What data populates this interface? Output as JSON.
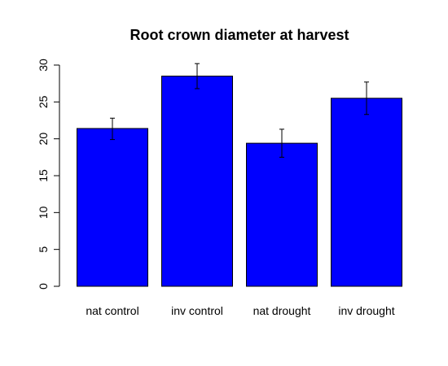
{
  "chart_data": {
    "type": "bar",
    "title": "Root crown diameter at harvest",
    "xlabel": "",
    "ylabel": "",
    "categories": [
      "nat control",
      "inv control",
      "nat drought",
      "inv drought"
    ],
    "values": [
      21.4,
      28.5,
      19.4,
      25.5
    ],
    "error_low": [
      19.9,
      26.8,
      17.5,
      23.3
    ],
    "error_high": [
      22.8,
      30.2,
      21.3,
      27.7
    ],
    "ylim": [
      0,
      30
    ],
    "yticks": [
      0,
      5,
      10,
      15,
      20,
      25,
      30
    ],
    "bar_color": "#0000ff",
    "bar_border_color": "#000000",
    "error_bar_color": "#000000",
    "grid": false
  }
}
